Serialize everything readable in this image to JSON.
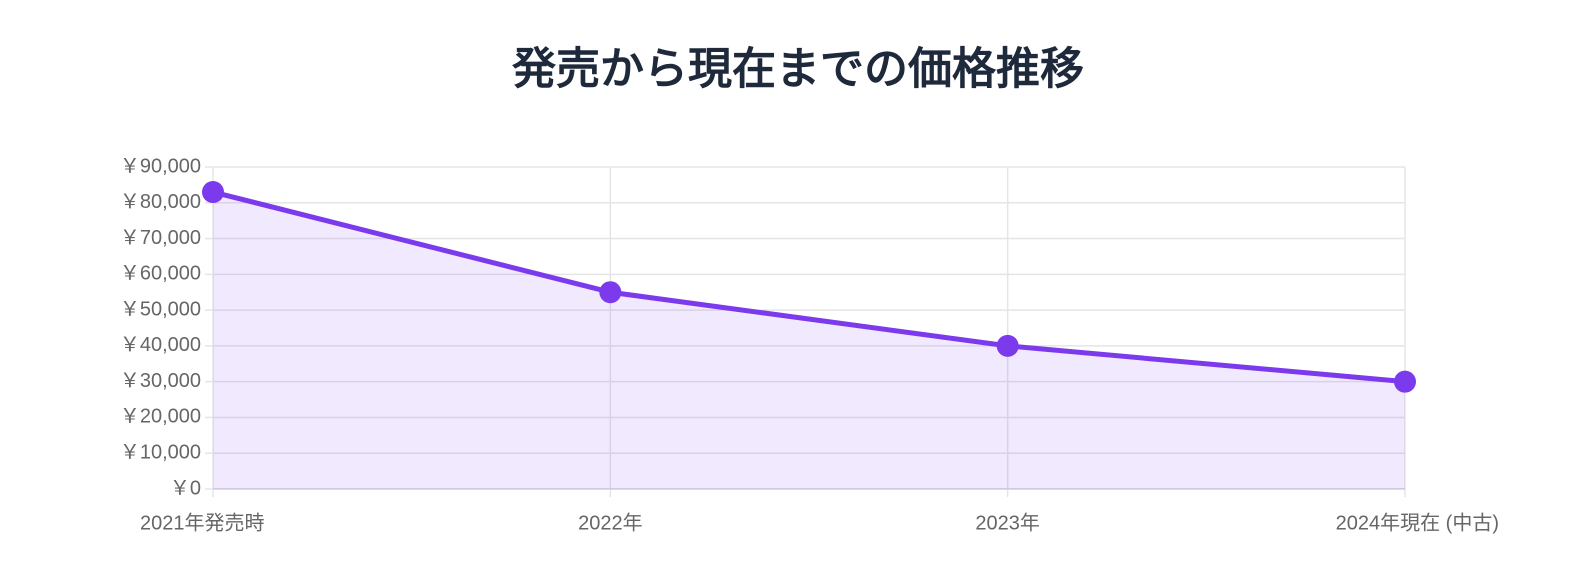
{
  "chart_data": {
    "type": "line",
    "title": "発売から現在までの価格推移",
    "categories": [
      "2021年発売時",
      "2022年",
      "2023年",
      "2024年現在 (中古)"
    ],
    "series": [
      {
        "color": "#7c3aed",
        "values": [
          83000,
          55000,
          40000,
          30000
        ]
      }
    ],
    "fill": true,
    "ylim": [
      0,
      90000
    ],
    "yticks": [
      {
        "value": 0,
        "label": "￥0"
      },
      {
        "value": 10000,
        "label": "￥10,000"
      },
      {
        "value": 20000,
        "label": "￥20,000"
      },
      {
        "value": 30000,
        "label": "￥30,000"
      },
      {
        "value": 40000,
        "label": "￥40,000"
      },
      {
        "value": 50000,
        "label": "￥50,000"
      },
      {
        "value": 60000,
        "label": "￥60,000"
      },
      {
        "value": 70000,
        "label": "￥70,000"
      },
      {
        "value": 80000,
        "label": "￥80,000"
      },
      {
        "value": 90000,
        "label": "￥90,000"
      }
    ],
    "grid": true
  }
}
